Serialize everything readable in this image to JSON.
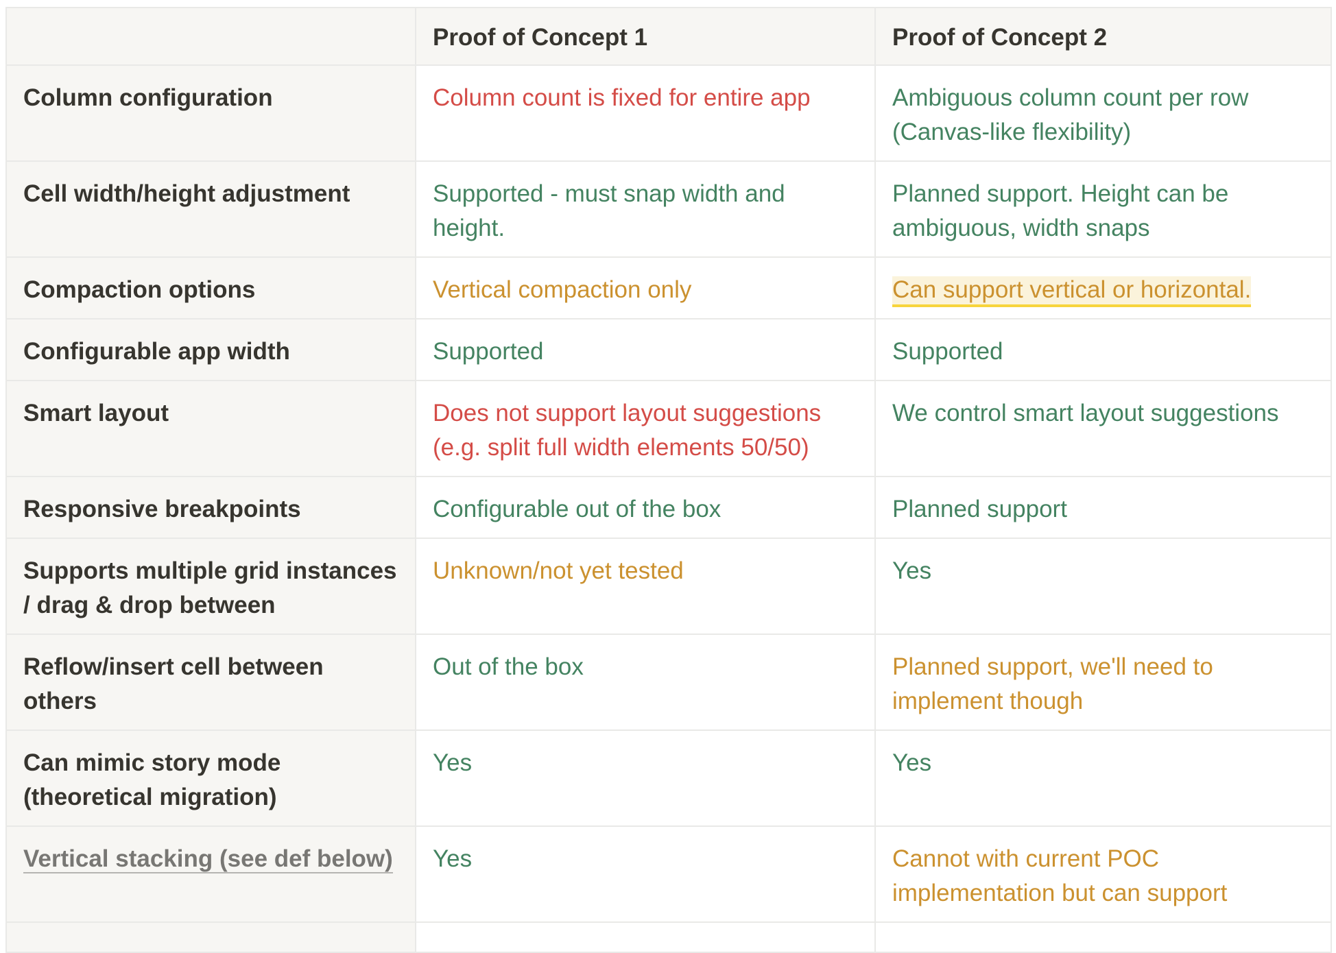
{
  "header": {
    "corner": "",
    "col1": "Proof of Concept 1",
    "col2": "Proof of Concept 2"
  },
  "rows": [
    {
      "label": "Column configuration",
      "poc1": "Column count is fixed for entire app",
      "poc2": "Ambiguous column count per row (Canvas-like flexibility)"
    },
    {
      "label": "Cell width/height adjustment",
      "poc1": "Supported - must snap width and height.",
      "poc2": "Planned support. Height can be ambiguous, width snaps"
    },
    {
      "label": "Compaction options",
      "poc1": "Vertical compaction only",
      "poc2": "Can support vertical or horizontal."
    },
    {
      "label": "Configurable app width",
      "poc1": "Supported",
      "poc2": "Supported"
    },
    {
      "label": "Smart layout",
      "poc1": "Does not support layout suggestions (e.g. split full width elements 50/50)",
      "poc2": "We control smart layout suggestions"
    },
    {
      "label": "Responsive breakpoints",
      "poc1": "Configurable out of the box",
      "poc2": "Planned support"
    },
    {
      "label": "Supports multiple grid instances / drag & drop between",
      "poc1": "Unknown/not yet tested",
      "poc2": "Yes"
    },
    {
      "label": "Reflow/insert cell between others",
      "poc1": "Out of the box",
      "poc2": "Planned support, we'll need to implement though"
    },
    {
      "label": "Can mimic story mode (theoretical migration)",
      "poc1": "Yes",
      "poc2": "Yes"
    },
    {
      "label": "Vertical stacking (see def below)",
      "poc1": "Yes",
      "poc2": "Cannot with current POC implementation but can support"
    }
  ],
  "colors": {
    "red": "#d44c47",
    "green": "#448361",
    "orange": "#cb912f",
    "header_bg": "#f7f6f3",
    "border": "#e9e9e7",
    "highlight": "#fbf3db"
  }
}
